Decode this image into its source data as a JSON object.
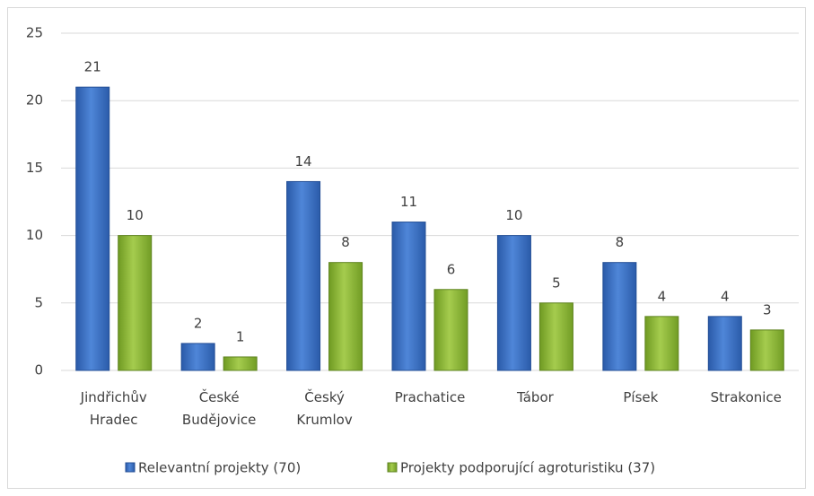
{
  "chart_data": {
    "type": "bar",
    "categories": [
      "Jindřichův Hradec",
      "České Budějovice",
      "Český Krumlov",
      "Prachatice",
      "Tábor",
      "Písek",
      "Strakonice"
    ],
    "series": [
      {
        "name": "Relevantní projekty (70)",
        "color": "#3c71c6",
        "values": [
          21,
          2,
          14,
          11,
          10,
          8,
          4
        ]
      },
      {
        "name": "Projekty podporující agroturistiku (37)",
        "color": "#8cb63c",
        "values": [
          10,
          1,
          8,
          6,
          5,
          4,
          3
        ]
      }
    ],
    "ylim": [
      0,
      25
    ],
    "yticks": [
      0,
      5,
      10,
      15,
      20,
      25
    ],
    "grid": true,
    "legend": "bottom"
  }
}
